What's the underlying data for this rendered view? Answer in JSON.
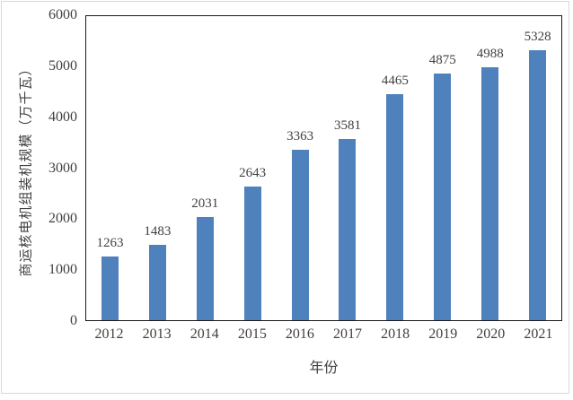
{
  "colors": {
    "bar": "#4F81BD",
    "text": "#404040",
    "axis": "#1a1a1a",
    "frame_border": "#d9d9d9",
    "background": "#ffffff"
  },
  "chart_data": {
    "type": "bar",
    "title": "",
    "categories": [
      "2012",
      "2013",
      "2014",
      "2015",
      "2016",
      "2017",
      "2018",
      "2019",
      "2020",
      "2021"
    ],
    "values": [
      1263,
      1483,
      2031,
      2643,
      3363,
      3581,
      4465,
      4875,
      4988,
      5328
    ],
    "data_labels": [
      1263,
      1483,
      2031,
      2643,
      3363,
      3581,
      4465,
      4875,
      4988,
      5328
    ],
    "xlabel": "年份",
    "ylabel": "商运核电机组装机规模（万千瓦）",
    "ylim": [
      0,
      6000
    ],
    "ytick_step": 1000,
    "ytick_labels": [
      "0",
      "1000",
      "2000",
      "3000",
      "4000",
      "5000",
      "6000"
    ],
    "grid": false,
    "legend_position": "none"
  }
}
